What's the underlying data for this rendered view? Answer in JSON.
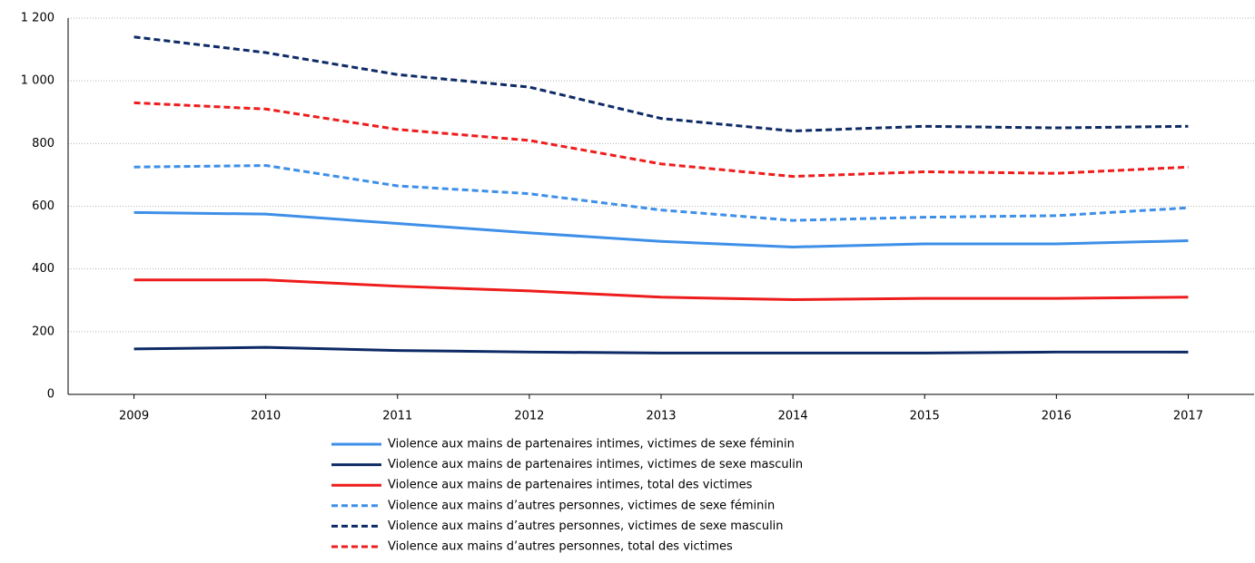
{
  "chart_data": {
    "type": "line",
    "categories": [
      "2009",
      "2010",
      "2011",
      "2012",
      "2013",
      "2014",
      "2015",
      "2016",
      "2017"
    ],
    "series": [
      {
        "name": "Violence aux mains de partenaires intimes, victimes de sexe féminin",
        "color": "#3d8fe8",
        "style": "solid",
        "values": [
          580,
          575,
          545,
          515,
          488,
          470,
          480,
          480,
          490
        ]
      },
      {
        "name": "Violence aux mains de partenaires intimes, victimes de sexe masculin",
        "color": "#0d2a66",
        "style": "solid",
        "values": [
          145,
          150,
          140,
          135,
          132,
          132,
          132,
          135,
          135
        ]
      },
      {
        "name": "Violence aux mains de partenaires intimes, total des victimes",
        "color": "#ee1c1c",
        "style": "solid",
        "values": [
          365,
          365,
          345,
          330,
          310,
          302,
          306,
          306,
          310
        ]
      },
      {
        "name": "Violence aux mains d’autres personnes, victimes de sexe féminin",
        "color": "#3d8fe8",
        "style": "dashed",
        "values": [
          725,
          730,
          665,
          640,
          588,
          555,
          565,
          570,
          595
        ]
      },
      {
        "name": "Violence aux mains d’autres personnes, victimes de sexe masculin",
        "color": "#0d2a66",
        "style": "dashed",
        "values": [
          1140,
          1090,
          1020,
          980,
          880,
          840,
          855,
          850,
          855
        ]
      },
      {
        "name": "Violence aux mains d’autres personnes, total des victimes",
        "color": "#ee1c1c",
        "style": "dashed",
        "values": [
          930,
          910,
          845,
          810,
          735,
          695,
          710,
          705,
          725
        ]
      }
    ],
    "ylim": [
      0,
      1200
    ],
    "yticks": [
      0,
      200,
      400,
      600,
      800,
      {
        "value": 1000,
        "label": "1 000"
      },
      {
        "value": 1200,
        "label": "1 200"
      }
    ],
    "grid": true
  }
}
